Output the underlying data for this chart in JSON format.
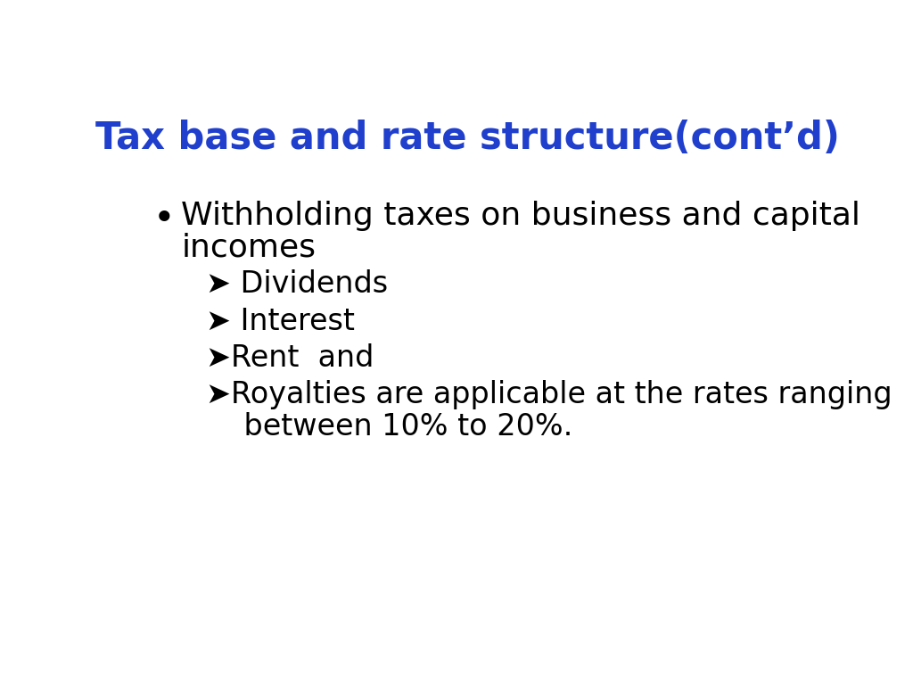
{
  "title": "Tax base and rate structure(cont’d)",
  "title_color": "#1f3fcc",
  "title_fontsize": 30,
  "background_color": "#ffffff",
  "bullet_color": "#000000",
  "bullet_line1": "Withholding taxes on business and capital",
  "bullet_line2": "incomes",
  "bullet_fontsize": 26,
  "sub_items": [
    "➤ Dividends",
    "➤ Interest",
    "➤Rent  and",
    "➤Royalties are applicable at the rates ranging",
    "    between 10% to 20%."
  ],
  "sub_fontsize": 24
}
